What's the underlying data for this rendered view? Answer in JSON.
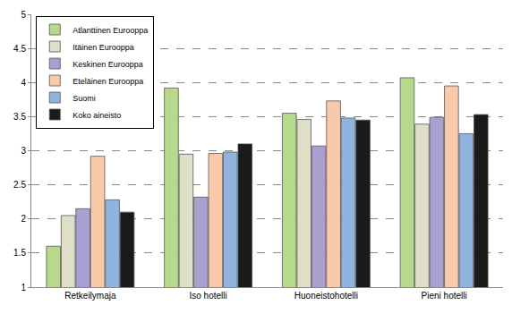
{
  "chart_data": {
    "type": "bar",
    "categories": [
      "Retkeilymaja",
      "Iso hotelli",
      "Huoneistohotelli",
      "Pieni hotelli"
    ],
    "series": [
      {
        "name": "Atlanttinen Eurooppa",
        "color": "#b7d98c",
        "values": [
          1.6,
          3.92,
          3.55,
          4.07
        ]
      },
      {
        "name": "Itäinen Eurooppa",
        "color": "#dedfc6",
        "values": [
          2.05,
          2.95,
          3.46,
          3.39
        ]
      },
      {
        "name": "Keskinen Eurooppa",
        "color": "#a99fd1",
        "values": [
          2.15,
          2.32,
          3.07,
          3.49
        ]
      },
      {
        "name": "Eteläinen Eurooppa",
        "color": "#f9c9a9",
        "values": [
          2.92,
          2.96,
          3.73,
          3.95
        ]
      },
      {
        "name": "Suomi",
        "color": "#8fb4df",
        "values": [
          2.28,
          2.98,
          3.48,
          3.25
        ]
      },
      {
        "name": "Koko aineisto",
        "color": "#1a1a1a",
        "values": [
          2.1,
          3.1,
          3.45,
          3.53
        ]
      }
    ],
    "ylim": [
      1,
      5
    ],
    "yticks": [
      1,
      1.5,
      2,
      2.5,
      3,
      3.5,
      4,
      4.5,
      5
    ],
    "grid": true,
    "legend": "top-left"
  }
}
